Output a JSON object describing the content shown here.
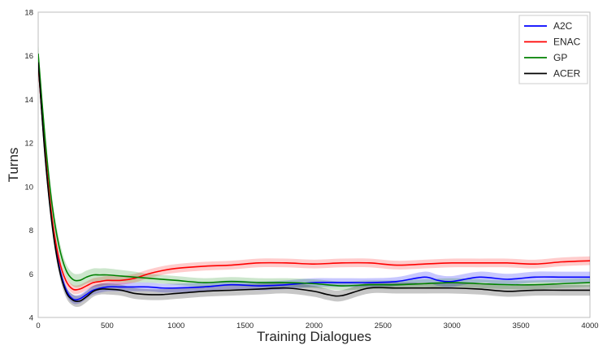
{
  "chart_data": {
    "type": "line",
    "xlabel": "Training Dialogues",
    "ylabel": "Turns",
    "xlim": [
      0,
      4000
    ],
    "ylim": [
      4,
      18
    ],
    "xticks": [
      0,
      500,
      1000,
      1500,
      2000,
      2500,
      3000,
      3500,
      4000
    ],
    "yticks": [
      4,
      6,
      8,
      10,
      12,
      14,
      16,
      18
    ],
    "grid": false,
    "legend_position": "top-right",
    "series": [
      {
        "name": "A2C",
        "color": "#0000ff",
        "band_opacity": 0.22,
        "x": [
          0,
          50,
          100,
          150,
          200,
          250,
          300,
          350,
          400,
          500,
          600,
          700,
          800,
          900,
          1000,
          1200,
          1400,
          1600,
          1800,
          2000,
          2200,
          2400,
          2600,
          2800,
          2900,
          3000,
          3200,
          3400,
          3600,
          3800,
          4000
        ],
        "y": [
          15.8,
          11.5,
          8.4,
          6.4,
          5.3,
          4.85,
          4.85,
          5.05,
          5.25,
          5.4,
          5.4,
          5.4,
          5.4,
          5.35,
          5.35,
          5.4,
          5.5,
          5.45,
          5.5,
          5.6,
          5.6,
          5.6,
          5.65,
          5.85,
          5.7,
          5.65,
          5.85,
          5.75,
          5.85,
          5.85,
          5.85
        ],
        "band": [
          0.35,
          0.35,
          0.3,
          0.25,
          0.2,
          0.2,
          0.2,
          0.2,
          0.2,
          0.2,
          0.2,
          0.2,
          0.2,
          0.2,
          0.2,
          0.2,
          0.2,
          0.2,
          0.2,
          0.2,
          0.2,
          0.2,
          0.2,
          0.25,
          0.25,
          0.25,
          0.25,
          0.25,
          0.25,
          0.25,
          0.25
        ]
      },
      {
        "name": "ENAC",
        "color": "#ff0000",
        "band_opacity": 0.2,
        "x": [
          0,
          50,
          100,
          150,
          200,
          250,
          300,
          350,
          400,
          450,
          500,
          600,
          700,
          800,
          900,
          1000,
          1200,
          1400,
          1600,
          1800,
          2000,
          2200,
          2400,
          2600,
          2800,
          3000,
          3200,
          3400,
          3600,
          3800,
          4000
        ],
        "y": [
          15.6,
          11.6,
          8.6,
          6.7,
          5.7,
          5.3,
          5.3,
          5.45,
          5.6,
          5.65,
          5.7,
          5.7,
          5.8,
          6.0,
          6.15,
          6.25,
          6.35,
          6.4,
          6.5,
          6.5,
          6.45,
          6.5,
          6.5,
          6.4,
          6.45,
          6.5,
          6.5,
          6.5,
          6.45,
          6.55,
          6.6
        ],
        "band": [
          0.35,
          0.35,
          0.3,
          0.25,
          0.2,
          0.2,
          0.2,
          0.2,
          0.2,
          0.2,
          0.2,
          0.2,
          0.2,
          0.2,
          0.2,
          0.2,
          0.2,
          0.2,
          0.2,
          0.2,
          0.2,
          0.2,
          0.2,
          0.2,
          0.2,
          0.2,
          0.2,
          0.2,
          0.2,
          0.2,
          0.2
        ]
      },
      {
        "name": "GP",
        "color": "#008000",
        "band_opacity": 0.2,
        "x": [
          0,
          50,
          100,
          150,
          200,
          250,
          300,
          350,
          400,
          450,
          500,
          600,
          700,
          800,
          1000,
          1200,
          1400,
          1600,
          1800,
          2000,
          2200,
          2400,
          2600,
          2800,
          3000,
          3200,
          3400,
          3600,
          3800,
          4000
        ],
        "y": [
          16.1,
          12.2,
          9.2,
          7.3,
          6.2,
          5.75,
          5.7,
          5.85,
          5.95,
          5.95,
          5.95,
          5.9,
          5.85,
          5.8,
          5.7,
          5.6,
          5.65,
          5.6,
          5.6,
          5.55,
          5.45,
          5.5,
          5.5,
          5.55,
          5.6,
          5.55,
          5.5,
          5.5,
          5.55,
          5.6
        ],
        "band": [
          0.35,
          0.35,
          0.35,
          0.35,
          0.3,
          0.3,
          0.3,
          0.3,
          0.3,
          0.3,
          0.3,
          0.28,
          0.25,
          0.2,
          0.2,
          0.2,
          0.2,
          0.2,
          0.2,
          0.2,
          0.2,
          0.2,
          0.2,
          0.2,
          0.2,
          0.2,
          0.2,
          0.2,
          0.2,
          0.2
        ]
      },
      {
        "name": "ACER",
        "color": "#000000",
        "band_opacity": 0.22,
        "x": [
          0,
          50,
          100,
          150,
          200,
          250,
          300,
          350,
          400,
          450,
          500,
          600,
          700,
          800,
          900,
          1000,
          1200,
          1400,
          1600,
          1800,
          2000,
          2100,
          2200,
          2400,
          2600,
          2800,
          3000,
          3200,
          3400,
          3600,
          3800,
          4000
        ],
        "y": [
          15.7,
          11.4,
          8.3,
          6.3,
          5.2,
          4.8,
          4.75,
          4.95,
          5.2,
          5.3,
          5.3,
          5.25,
          5.1,
          5.05,
          5.05,
          5.1,
          5.2,
          5.25,
          5.3,
          5.35,
          5.2,
          5.05,
          5.0,
          5.35,
          5.35,
          5.35,
          5.35,
          5.3,
          5.2,
          5.25,
          5.25,
          5.25
        ],
        "band": [
          0.35,
          0.35,
          0.3,
          0.25,
          0.25,
          0.25,
          0.25,
          0.25,
          0.25,
          0.25,
          0.25,
          0.25,
          0.25,
          0.25,
          0.25,
          0.25,
          0.25,
          0.25,
          0.25,
          0.25,
          0.25,
          0.25,
          0.25,
          0.25,
          0.25,
          0.25,
          0.25,
          0.25,
          0.25,
          0.25,
          0.25,
          0.25
        ]
      }
    ]
  }
}
